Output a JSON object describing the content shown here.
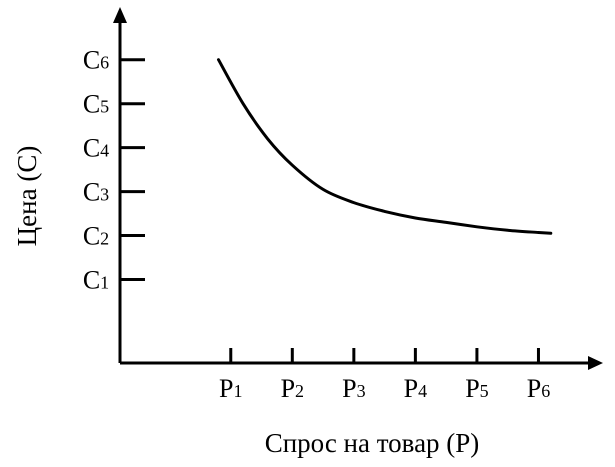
{
  "chart_data": {
    "type": "line",
    "title": "",
    "xlabel": "Спрос на товар (Р)",
    "ylabel": "Цена (С)",
    "x_ticks": [
      {
        "main": "Р",
        "sub": "1"
      },
      {
        "main": "Р",
        "sub": "2"
      },
      {
        "main": "Р",
        "sub": "3"
      },
      {
        "main": "Р",
        "sub": "4"
      },
      {
        "main": "Р",
        "sub": "5"
      },
      {
        "main": "Р",
        "sub": "6"
      }
    ],
    "y_ticks": [
      {
        "main": "С",
        "sub": "1"
      },
      {
        "main": "С",
        "sub": "2"
      },
      {
        "main": "С",
        "sub": "3"
      },
      {
        "main": "С",
        "sub": "4"
      },
      {
        "main": "С",
        "sub": "5"
      },
      {
        "main": "С",
        "sub": "6"
      }
    ],
    "series": [
      {
        "x": [
          0.8,
          1.2,
          1.6,
          2.0,
          2.5,
          3.0,
          3.5,
          4.0,
          4.5,
          5.0,
          5.5,
          6.0,
          6.2
        ],
        "y": [
          6.0,
          5.0,
          4.2,
          3.6,
          3.05,
          2.75,
          2.55,
          2.4,
          2.3,
          2.2,
          2.12,
          2.07,
          2.05
        ]
      }
    ],
    "xlim": [
      -0.8,
      7.0
    ],
    "ylim": [
      -0.9,
      7.2
    ],
    "grid": false,
    "legend": "none"
  }
}
